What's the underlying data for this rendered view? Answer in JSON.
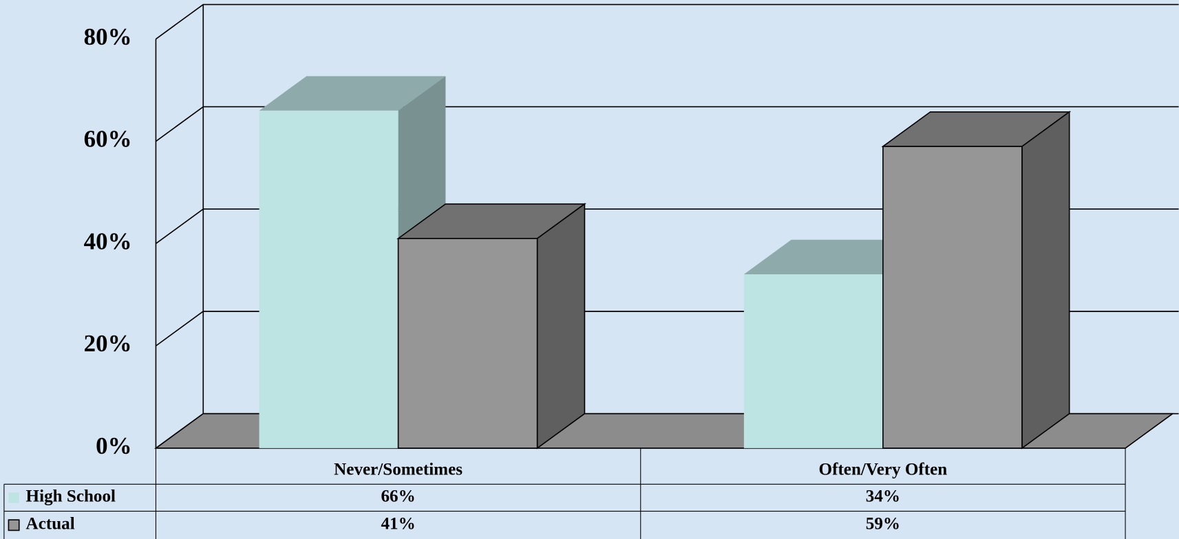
{
  "chart_data": {
    "type": "bar3d",
    "categories": [
      "Never/Sometimes",
      "Often/Very Often"
    ],
    "series": [
      {
        "name": "High School",
        "color": "#bde3e3",
        "values": [
          66,
          34
        ],
        "value_labels": [
          "66%",
          "34%"
        ]
      },
      {
        "name": "Actual",
        "color": "#969696",
        "values": [
          41,
          59
        ],
        "value_labels": [
          "41%",
          "59%"
        ]
      }
    ],
    "ylim": [
      0,
      80
    ],
    "yticks": [
      {
        "value": 0,
        "label": "0%"
      },
      {
        "value": 20,
        "label": "20%"
      },
      {
        "value": 40,
        "label": "40%"
      },
      {
        "value": 60,
        "label": "60%"
      },
      {
        "value": 80,
        "label": "80%"
      }
    ],
    "grid": true
  }
}
